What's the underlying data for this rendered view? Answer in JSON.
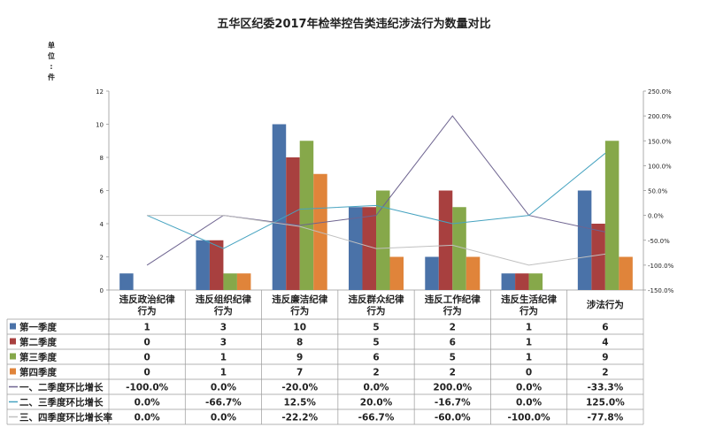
{
  "title": "五华区纪委2017年检举控告类违纪涉法行为数量对比",
  "unit_label": "单位：件",
  "chart_data": {
    "type": "bar",
    "title": "五华区纪委2017年检举控告类违纪涉法行为数量对比",
    "ylabel": "单位：件",
    "ylim": [
      0,
      12
    ],
    "y_ticks": [
      0,
      2,
      4,
      6,
      8,
      10,
      12
    ],
    "y2lim": [
      -150,
      250
    ],
    "y2_ticks": [
      "250.0%",
      "200.0%",
      "150.0%",
      "100.0%",
      "50.0%",
      "0.0%",
      "-50.0%",
      "-100.0%",
      "-150.0%"
    ],
    "categories": [
      [
        "违反政治纪律",
        "行为"
      ],
      [
        "违反组织纪律",
        "行为"
      ],
      [
        "违反廉洁纪律",
        "行为"
      ],
      [
        "违反群众纪律",
        "行为"
      ],
      [
        "违反工作纪律",
        "行为"
      ],
      [
        "违反生活纪律",
        "行为"
      ],
      [
        "涉法行为"
      ]
    ],
    "series": [
      {
        "name": "第一季度",
        "type": "bar",
        "color": "#4a72a8",
        "values": [
          1,
          3,
          10,
          5,
          2,
          1,
          6
        ],
        "labels": [
          "1",
          "3",
          "10",
          "5",
          "2",
          "1",
          "6"
        ]
      },
      {
        "name": "第二季度",
        "type": "bar",
        "color": "#a8403f",
        "values": [
          0,
          3,
          8,
          5,
          6,
          1,
          4
        ],
        "labels": [
          "0",
          "3",
          "8",
          "5",
          "6",
          "1",
          "4"
        ]
      },
      {
        "name": "第三季度",
        "type": "bar",
        "color": "#86a84a",
        "values": [
          0,
          1,
          9,
          6,
          5,
          1,
          9
        ],
        "labels": [
          "0",
          "1",
          "9",
          "6",
          "5",
          "1",
          "9"
        ]
      },
      {
        "name": "第四季度",
        "type": "bar",
        "color": "#e0843a",
        "values": [
          0,
          1,
          7,
          2,
          2,
          0,
          2
        ],
        "labels": [
          "0",
          "1",
          "7",
          "2",
          "2",
          "0",
          "2"
        ]
      },
      {
        "name": "一、二季度环比增长",
        "type": "line",
        "color": "#6e6490",
        "values": [
          -100,
          0,
          -20,
          0,
          200,
          0,
          -33.3
        ],
        "labels": [
          "-100.0%",
          "0.0%",
          "-20.0%",
          "0.0%",
          "200.0%",
          "0.0%",
          "-33.3%"
        ]
      },
      {
        "name": "二、三季度环比增长",
        "type": "line",
        "color": "#46a3c0",
        "values": [
          0,
          -66.7,
          12.5,
          20,
          -16.7,
          0,
          125
        ],
        "labels": [
          "0.0%",
          "-66.7%",
          "12.5%",
          "20.0%",
          "-16.7%",
          "0.0%",
          "125.0%"
        ]
      },
      {
        "name": "三、四季度环比增长率",
        "type": "line",
        "color": "#c0c0c0",
        "values": [
          0,
          0,
          -22.2,
          -66.7,
          -60,
          -100,
          -77.8
        ],
        "labels": [
          "0.0%",
          "0.0%",
          "-22.2%",
          "-66.7%",
          "-60.0%",
          "-100.0%",
          "-77.8%"
        ]
      }
    ],
    "legend": "table-below"
  }
}
